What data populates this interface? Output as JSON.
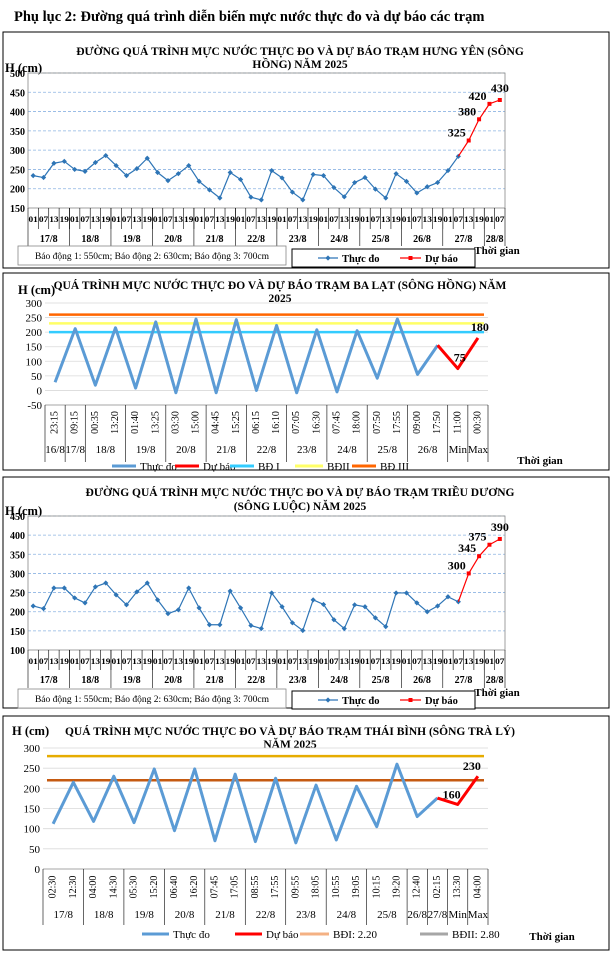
{
  "page_title": "Phụ lục 2: Đường quá trình diễn biến mực nước thực đo và dự báo các trạm",
  "chart_data": [
    {
      "type": "line",
      "title": [
        "ĐƯỜNG QUÁ TRÌNH MỰC NƯỚC THỰC ĐO VÀ DỰ BÁO TRẠM HƯNG YÊN (SÔNG",
        "HỒNG) NĂM 2025"
      ],
      "ylabel": "H (cm)",
      "xlabel": "Thời gian",
      "ylim": [
        150,
        500
      ],
      "ytick_step": 50,
      "grid": "dashed horizontal",
      "categories": [
        "01",
        "07",
        "13",
        "19",
        "01",
        "07",
        "13",
        "19",
        "01",
        "07",
        "13",
        "19",
        "01",
        "07",
        "13",
        "19",
        "01",
        "07",
        "13",
        "19",
        "01",
        "07",
        "13",
        "19",
        "01",
        "07",
        "13",
        "19",
        "01",
        "07",
        "13",
        "19",
        "01",
        "07",
        "13",
        "19",
        "01",
        "07",
        "13",
        "19",
        "01",
        "07",
        "13",
        "19",
        "01",
        "07"
      ],
      "date_groups": [
        {
          "label": "17/8",
          "span": 4
        },
        {
          "label": "18/8",
          "span": 4
        },
        {
          "label": "19/8",
          "span": 4
        },
        {
          "label": "20/8",
          "span": 4
        },
        {
          "label": "21/8",
          "span": 4
        },
        {
          "label": "22/8",
          "span": 4
        },
        {
          "label": "23/8",
          "span": 4
        },
        {
          "label": "24/8",
          "span": 4
        },
        {
          "label": "25/8",
          "span": 4
        },
        {
          "label": "26/8",
          "span": 4
        },
        {
          "label": "27/8",
          "span": 4
        },
        {
          "label": "28/8",
          "span": 2
        }
      ],
      "series": [
        {
          "name": "Thực đo",
          "color": "#2e75b6",
          "values": [
            234,
            229,
            266,
            271,
            250,
            245,
            268,
            286,
            260,
            234,
            252,
            279,
            242,
            221,
            239,
            260,
            219,
            197,
            176,
            242,
            224,
            178,
            171,
            247,
            228,
            191,
            171,
            237,
            234,
            203,
            179,
            216,
            229,
            199,
            176,
            239,
            219,
            189,
            205,
            216,
            247,
            284,
            null,
            null,
            null,
            null
          ]
        },
        {
          "name": "Dự báo",
          "color": "#ff0000",
          "labels": true,
          "values": [
            null,
            null,
            null,
            null,
            null,
            null,
            null,
            null,
            null,
            null,
            null,
            null,
            null,
            null,
            null,
            null,
            null,
            null,
            null,
            null,
            null,
            null,
            null,
            null,
            null,
            null,
            null,
            null,
            null,
            null,
            null,
            null,
            null,
            null,
            null,
            null,
            null,
            null,
            null,
            null,
            null,
            284,
            325,
            380,
            420,
            430
          ]
        }
      ],
      "thresholds": [],
      "note": "Báo động 1: 550cm; Báo động 2: 630cm; Báo động 3: 700cm"
    },
    {
      "type": "line",
      "title": [
        "QUÁ TRÌNH MỰC NƯỚC THỰC ĐO VÀ DỰ BÁO TRẠM BA LẠT (SÔNG HỒNG) NĂM",
        "2025"
      ],
      "ylabel": "H (cm)",
      "xlabel": "Thời gian",
      "ylim": [
        -50,
        300
      ],
      "ytick_step": 50,
      "grid": "solid horizontal",
      "categories": [
        "23:15",
        "09:15",
        "00:35",
        "13:20",
        "01:40",
        "13:25",
        "03:30",
        "15:00",
        "04:45",
        "15:25",
        "06:15",
        "16:10",
        "07:05",
        "16:30",
        "07:45",
        "18:00",
        "07:50",
        "17:55",
        "09:00",
        "17:50",
        "11:00",
        "00:30"
      ],
      "date_groups": [
        {
          "label": "16/8",
          "span": 1
        },
        {
          "label": "17/8",
          "span": 1
        },
        {
          "label": "18/8",
          "span": 2
        },
        {
          "label": "19/8",
          "span": 2
        },
        {
          "label": "20/8",
          "span": 2
        },
        {
          "label": "21/8",
          "span": 2
        },
        {
          "label": "22/8",
          "span": 2
        },
        {
          "label": "23/8",
          "span": 2
        },
        {
          "label": "24/8",
          "span": 2
        },
        {
          "label": "25/8",
          "span": 2
        },
        {
          "label": "26/8",
          "span": 2
        },
        {
          "label": "Min",
          "span": 1
        },
        {
          "label": "Max",
          "span": 1
        }
      ],
      "series": [
        {
          "name": "Thực đo",
          "color": "#5b9bd5",
          "values": [
            28,
            212,
            18,
            215,
            8,
            235,
            -8,
            245,
            -8,
            243,
            0,
            223,
            -8,
            208,
            -5,
            205,
            42,
            245,
            55,
            155,
            null,
            null
          ]
        },
        {
          "name": "Dự báo",
          "color": "#ff0000",
          "labels": true,
          "values": [
            null,
            null,
            null,
            null,
            null,
            null,
            null,
            null,
            null,
            null,
            null,
            null,
            null,
            null,
            null,
            null,
            null,
            null,
            null,
            155,
            75,
            180
          ]
        }
      ],
      "thresholds": [
        {
          "name": "BĐ I",
          "value": 200,
          "color": "#33ccff",
          "legend_color": "#33ccff"
        },
        {
          "name": "BĐII",
          "value": 230,
          "color": "#ffff66",
          "legend_color": "#ffff66"
        },
        {
          "name": "BĐ III",
          "value": 260,
          "color": "#ff6600",
          "legend_color": "#ff6600"
        }
      ]
    },
    {
      "type": "line",
      "title": [
        "ĐƯỜNG QUÁ TRÌNH MỰC NƯỚC THỰC ĐO VÀ DỰ BÁO TRẠM TRIỀU DƯƠNG",
        "(SÔNG LUỘC) NĂM 2025"
      ],
      "ylabel": "H (cm)",
      "xlabel": "Thời gian",
      "ylim": [
        100,
        450
      ],
      "ytick_step": 50,
      "grid": "dashed horizontal",
      "categories": [
        "01",
        "07",
        "13",
        "19",
        "01",
        "07",
        "13",
        "19",
        "01",
        "07",
        "13",
        "19",
        "01",
        "07",
        "13",
        "19",
        "01",
        "07",
        "13",
        "19",
        "01",
        "07",
        "13",
        "19",
        "01",
        "07",
        "13",
        "19",
        "01",
        "07",
        "13",
        "19",
        "01",
        "07",
        "13",
        "19",
        "01",
        "07",
        "13",
        "19",
        "01",
        "07",
        "13",
        "19",
        "01",
        "07"
      ],
      "date_groups": [
        {
          "label": "17/8",
          "span": 4
        },
        {
          "label": "18/8",
          "span": 4
        },
        {
          "label": "19/8",
          "span": 4
        },
        {
          "label": "20/8",
          "span": 4
        },
        {
          "label": "21/8",
          "span": 4
        },
        {
          "label": "22/8",
          "span": 4
        },
        {
          "label": "23/8",
          "span": 4
        },
        {
          "label": "24/8",
          "span": 4
        },
        {
          "label": "25/8",
          "span": 4
        },
        {
          "label": "26/8",
          "span": 4
        },
        {
          "label": "27/8",
          "span": 4
        },
        {
          "label": "28/8",
          "span": 2
        }
      ],
      "series": [
        {
          "name": "Thực đo",
          "color": "#2e75b6",
          "values": [
            215,
            208,
            262,
            262,
            236,
            223,
            265,
            275,
            244,
            218,
            252,
            275,
            231,
            195,
            205,
            262,
            210,
            166,
            166,
            254,
            210,
            164,
            156,
            249,
            213,
            171,
            151,
            231,
            219,
            179,
            156,
            218,
            213,
            184,
            161,
            249,
            249,
            223,
            200,
            215,
            239,
            226,
            null,
            null,
            null,
            null
          ]
        },
        {
          "name": "Dự báo",
          "color": "#ff0000",
          "labels": true,
          "values": [
            null,
            null,
            null,
            null,
            null,
            null,
            null,
            null,
            null,
            null,
            null,
            null,
            null,
            null,
            null,
            null,
            null,
            null,
            null,
            null,
            null,
            null,
            null,
            null,
            null,
            null,
            null,
            null,
            null,
            null,
            null,
            null,
            null,
            null,
            null,
            null,
            null,
            null,
            null,
            null,
            null,
            226,
            300,
            345,
            375,
            390
          ]
        }
      ],
      "thresholds": [],
      "note": "Báo động 1: 550cm; Báo động 2: 630cm; Báo động 3: 700cm"
    },
    {
      "type": "line",
      "title": [
        "QUÁ TRÌNH MỰC NƯỚC THỰC ĐO VÀ DỰ BÁO TRẠM THÁI BÌNH (SÔNG TRÀ LÝ)",
        "NĂM 2025"
      ],
      "ylabel": "H (cm)",
      "xlabel": "Thời gian",
      "ylim": [
        0,
        300
      ],
      "ytick_step": 50,
      "grid": "solid horizontal",
      "categories": [
        "02:30",
        "12:30",
        "04:00",
        "14:30",
        "05:30",
        "15:20",
        "06:40",
        "16:20",
        "07:45",
        "17:05",
        "08:55",
        "17:55",
        "09:55",
        "18:05",
        "10:55",
        "19:05",
        "10:15",
        "19:20",
        "12:40",
        "02:15",
        "13:30",
        "04:00"
      ],
      "date_groups": [
        {
          "label": "17/8",
          "span": 2
        },
        {
          "label": "18/8",
          "span": 2
        },
        {
          "label": "19/8",
          "span": 2
        },
        {
          "label": "20/8",
          "span": 2
        },
        {
          "label": "21/8",
          "span": 2
        },
        {
          "label": "22/8",
          "span": 2
        },
        {
          "label": "23/8",
          "span": 2
        },
        {
          "label": "24/8",
          "span": 2
        },
        {
          "label": "25/8",
          "span": 2
        },
        {
          "label": "26/8",
          "span": 1
        },
        {
          "label": "27/8",
          "span": 1
        },
        {
          "label": "Min",
          "span": 1
        },
        {
          "label": "Max",
          "span": 1
        }
      ],
      "series": [
        {
          "name": "Thực đo",
          "color": "#5b9bd5",
          "values": [
            112,
            215,
            118,
            230,
            115,
            248,
            95,
            248,
            70,
            235,
            68,
            225,
            65,
            208,
            72,
            205,
            105,
            260,
            130,
            176,
            null,
            null
          ]
        },
        {
          "name": "Dự báo",
          "color": "#ff0000",
          "labels": true,
          "values": [
            null,
            null,
            null,
            null,
            null,
            null,
            null,
            null,
            null,
            null,
            null,
            null,
            null,
            null,
            null,
            null,
            null,
            null,
            null,
            176,
            160,
            230
          ]
        }
      ],
      "thresholds": [
        {
          "name": "BĐI: 2.20",
          "value": 220,
          "color": "#c55a11",
          "legend_color": "#f4b183"
        },
        {
          "name": "BĐII: 2.80",
          "value": 280,
          "color": "#e6ac00",
          "legend_color": "#a6a6a6"
        }
      ]
    }
  ]
}
